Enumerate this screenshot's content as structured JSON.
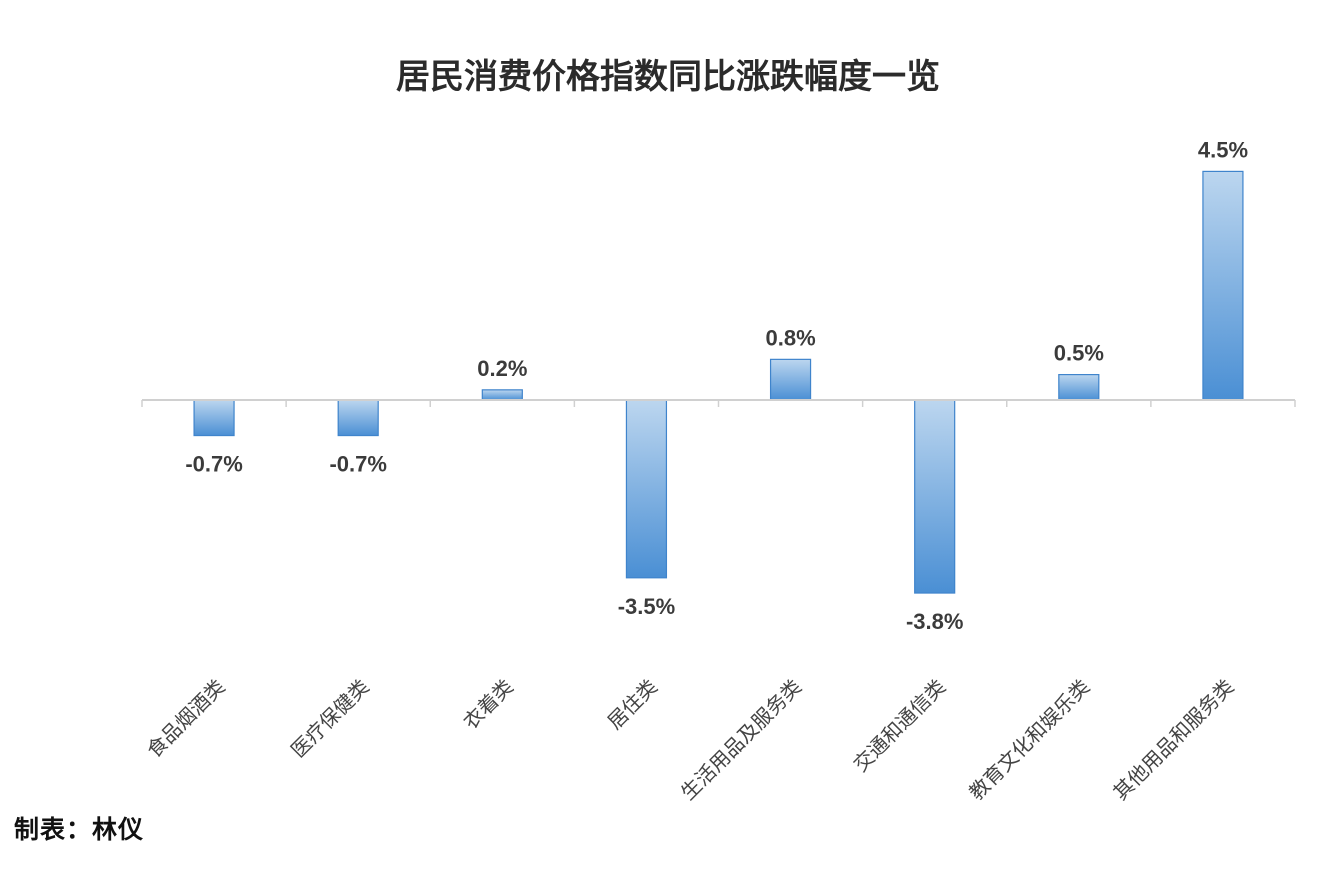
{
  "colors": {
    "bar_light": "#bcd6ef",
    "bar_dark": "#4a8fd4",
    "bar_stroke": "#3f84cc",
    "axis": "#d0d0d0"
  },
  "footer": "制表：林仪",
  "chart_data": {
    "type": "bar",
    "title": "居民消费价格指数同比涨跌幅度一览",
    "xlabel": "",
    "ylabel": "",
    "ylim": [
      -4.5,
      5.5
    ],
    "grid": false,
    "legend": "none",
    "categories": [
      "食品烟酒类",
      "医疗保健类",
      "衣着类",
      "居住类",
      "生活用品及服务类",
      "交通和通信类",
      "教育文化和娱乐类",
      "其他用品和服务类"
    ],
    "values": [
      -0.7,
      -0.7,
      0.2,
      -3.5,
      0.8,
      -3.8,
      0.5,
      4.5
    ],
    "value_labels": [
      "-0.7%",
      "-0.7%",
      "0.2%",
      "-3.5%",
      "0.8%",
      "-3.8%",
      "0.5%",
      "4.5%"
    ]
  }
}
